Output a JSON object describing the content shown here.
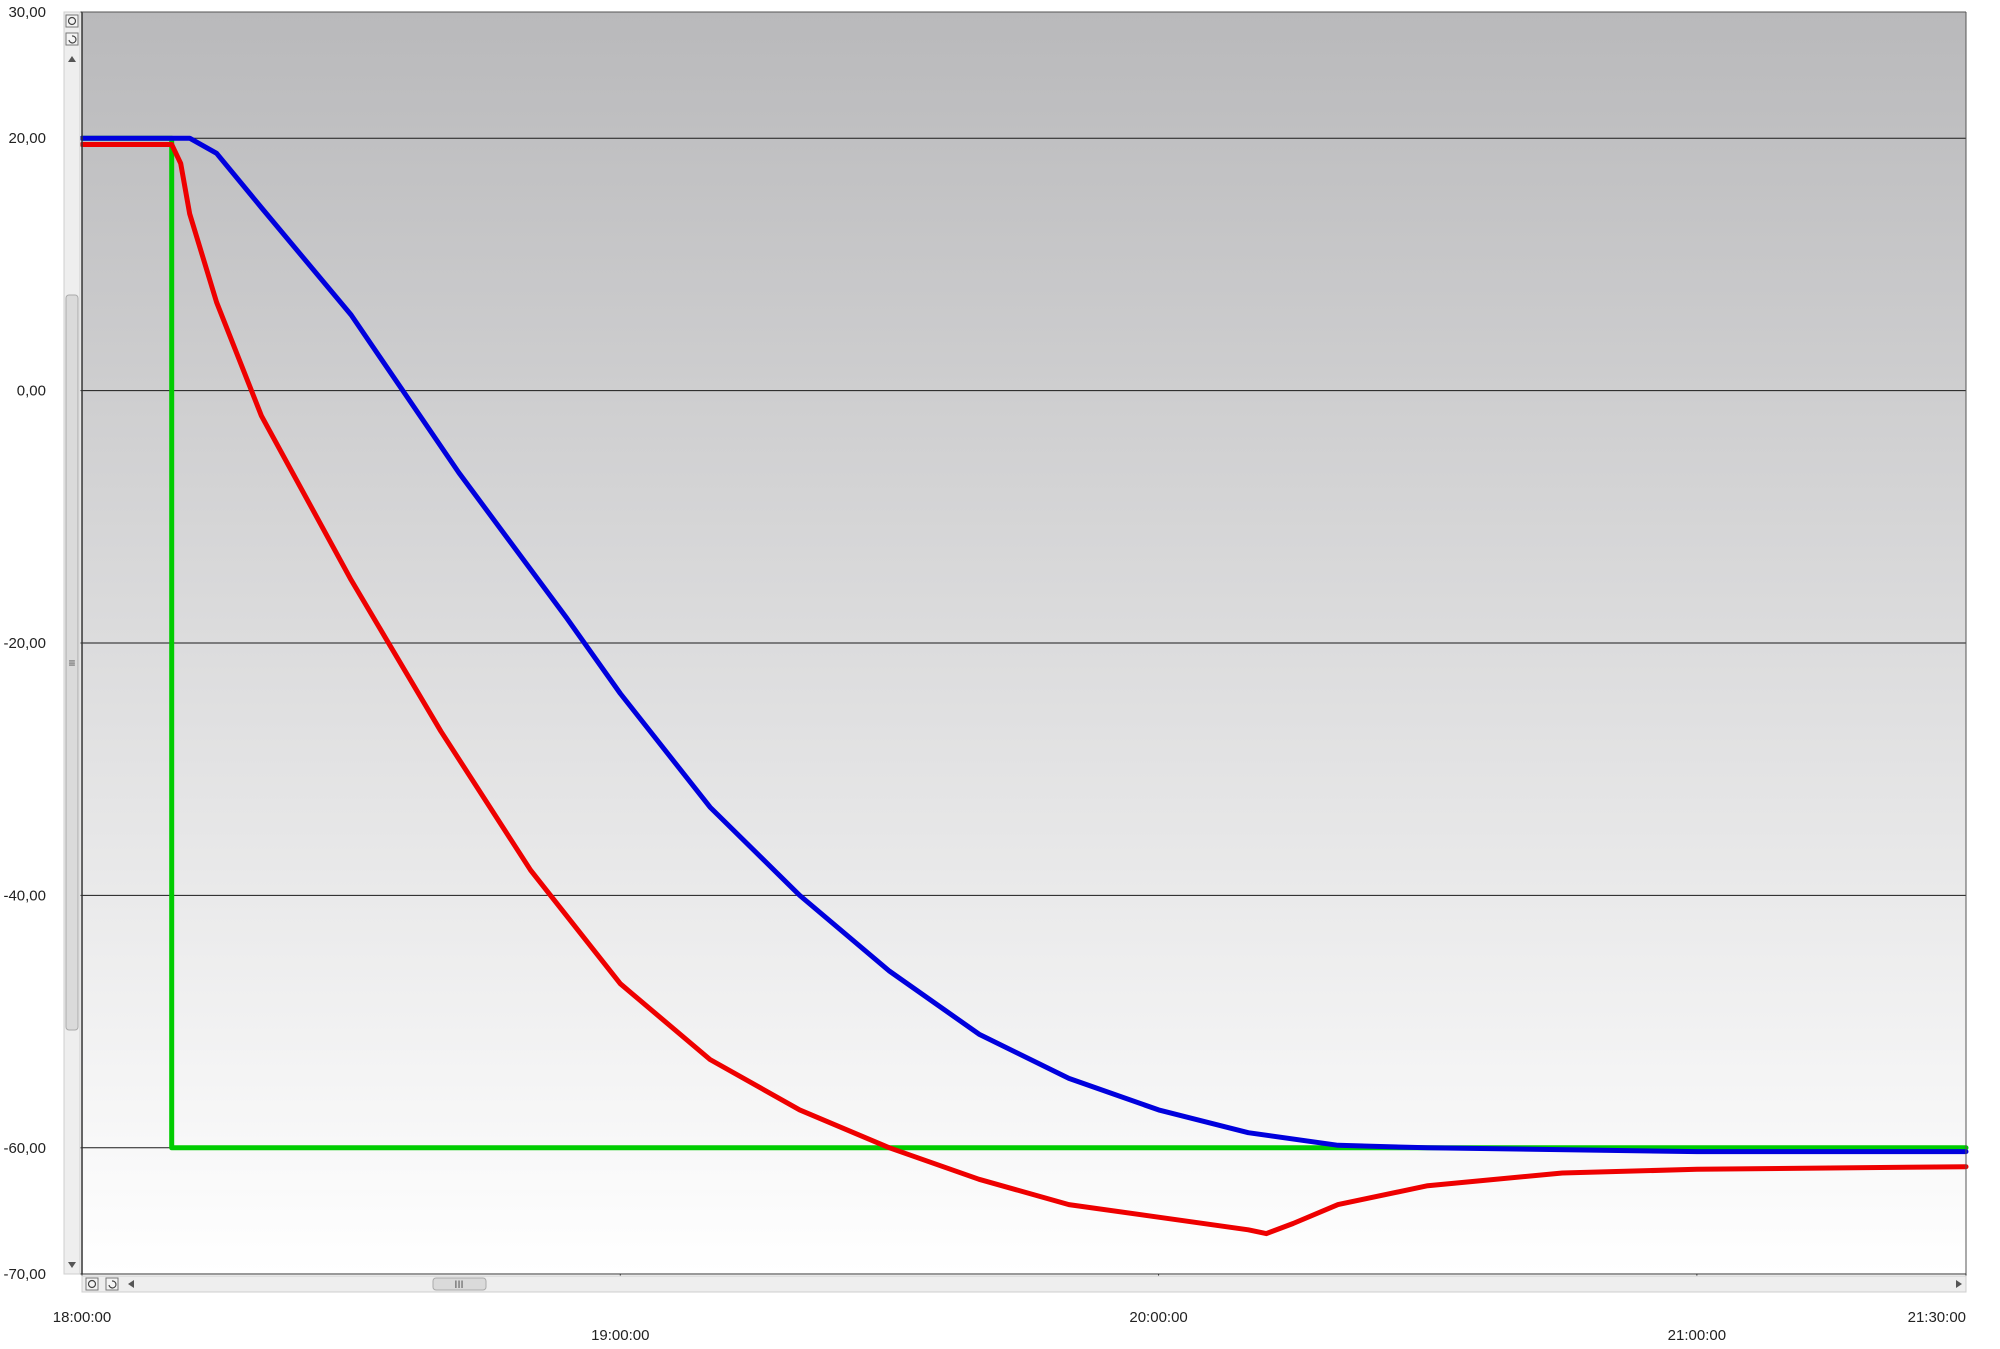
{
  "chart_data": {
    "type": "line",
    "title": "",
    "xlabel": "",
    "ylabel": "",
    "x_ticks": [
      "18:00:00",
      "19:00:00",
      "20:00:00",
      "21:00:00",
      "21:30:00"
    ],
    "y_ticks": [
      "30,00",
      "20,00",
      "0,00",
      "-20,00",
      "-40,00",
      "-60,00",
      "-70,00"
    ],
    "xlim": [
      "18:00:00",
      "21:30:00"
    ],
    "ylim": [
      -70,
      30
    ],
    "grid": "horizontal",
    "background": {
      "top": "#b9b9bb",
      "bottom": "#ffffff"
    },
    "series": [
      {
        "color": "#00cc00",
        "points": [
          [
            "18:00:00",
            20
          ],
          [
            "18:10:00",
            20
          ],
          [
            "18:10:00",
            -60
          ],
          [
            "21:30:00",
            -60
          ]
        ]
      },
      {
        "color": "#0000dd",
        "points": [
          [
            "18:00:00",
            20
          ],
          [
            "18:10:00",
            20
          ],
          [
            "18:12:00",
            20
          ],
          [
            "18:15:00",
            18.8
          ],
          [
            "18:20:00",
            14.5
          ],
          [
            "18:30:00",
            6
          ],
          [
            "18:42:00",
            -6.5
          ],
          [
            "18:54:00",
            -18
          ],
          [
            "19:00:00",
            -24
          ],
          [
            "19:10:00",
            -33
          ],
          [
            "19:20:00",
            -40
          ],
          [
            "19:30:00",
            -46
          ],
          [
            "19:40:00",
            -51
          ],
          [
            "19:50:00",
            -54.5
          ],
          [
            "20:00:00",
            -57
          ],
          [
            "20:10:00",
            -58.8
          ],
          [
            "20:20:00",
            -59.8
          ],
          [
            "20:30:00",
            -60
          ],
          [
            "21:00:00",
            -60.3
          ],
          [
            "21:30:00",
            -60.3
          ]
        ]
      },
      {
        "color": "#ee0000",
        "points": [
          [
            "18:00:00",
            19.5
          ],
          [
            "18:10:00",
            19.5
          ],
          [
            "18:11:00",
            18
          ],
          [
            "18:12:00",
            14
          ],
          [
            "18:15:00",
            7
          ],
          [
            "18:20:00",
            -2
          ],
          [
            "18:30:00",
            -15
          ],
          [
            "18:40:00",
            -27
          ],
          [
            "18:50:00",
            -38
          ],
          [
            "19:00:00",
            -47
          ],
          [
            "19:10:00",
            -53
          ],
          [
            "19:20:00",
            -57
          ],
          [
            "19:30:00",
            -60
          ],
          [
            "19:40:00",
            -62.5
          ],
          [
            "19:50:00",
            -64.5
          ],
          [
            "20:00:00",
            -65.5
          ],
          [
            "20:10:00",
            -66.5
          ],
          [
            "20:12:00",
            -66.8
          ],
          [
            "20:15:00",
            -66
          ],
          [
            "20:20:00",
            -64.5
          ],
          [
            "20:30:00",
            -63
          ],
          [
            "20:45:00",
            -62
          ],
          [
            "21:00:00",
            -61.7
          ],
          [
            "21:30:00",
            -61.5
          ]
        ]
      }
    ]
  },
  "scrollbars": {
    "horizontal_thumb_glyph": "III",
    "vertical_thumb_glyph": "≡"
  }
}
